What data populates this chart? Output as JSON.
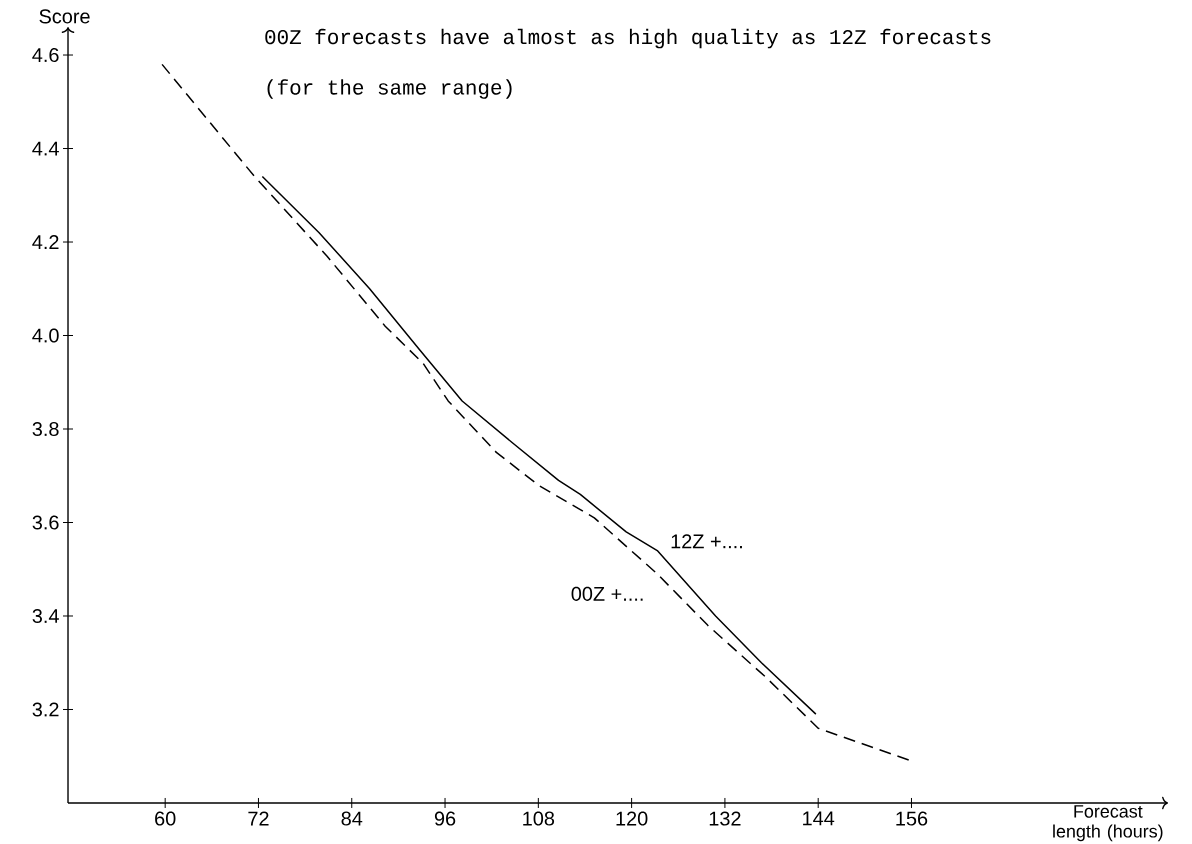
{
  "chart_data": {
    "type": "line",
    "title": "00Z forecasts have almost as high quality as 12Z forecasts",
    "subtitle": "(for the same range)",
    "xlabel": "Forecast length (hours)",
    "ylabel": "Score",
    "xlim": [
      47.5,
      189
    ],
    "xticks": [
      60,
      72,
      84,
      96,
      108,
      120,
      132,
      144,
      156
    ],
    "ylim": [
      3.0,
      4.66
    ],
    "yticks": [
      3.2,
      3.4,
      3.6,
      3.8,
      {
        "value": 4.0,
        "label": "4.0"
      },
      4.2,
      4.4,
      4.6
    ],
    "legend": false,
    "grid": false,
    "marker": "none",
    "series": [
      {
        "name": "12Z +....",
        "color": "#000000",
        "line_style": "solid",
        "x": [
          72.5,
          79.8,
          86.3,
          92.7,
          98.2,
          104.7,
          110.6,
          113.4,
          119.3,
          123.3,
          130.8,
          136.7,
          143.7
        ],
        "values": [
          4.34,
          4.22,
          4.1,
          3.97,
          3.86,
          3.77,
          3.69,
          3.66,
          3.58,
          3.54,
          3.4,
          3.3,
          3.19
        ]
      },
      {
        "name": "00Z +....",
        "color": "#000000",
        "line_style": "dashed",
        "x": [
          59.6,
          71.5,
          80.8,
          88.3,
          93.2,
          96.4,
          102.6,
          108.0,
          115.2,
          123.3,
          129.8,
          137.2,
          144.0,
          149.1,
          156.0
        ],
        "values": [
          4.58,
          4.34,
          4.17,
          4.02,
          3.94,
          3.86,
          3.75,
          3.68,
          3.61,
          3.49,
          3.38,
          3.27,
          3.16,
          3.13,
          3.09
        ]
      }
    ]
  }
}
